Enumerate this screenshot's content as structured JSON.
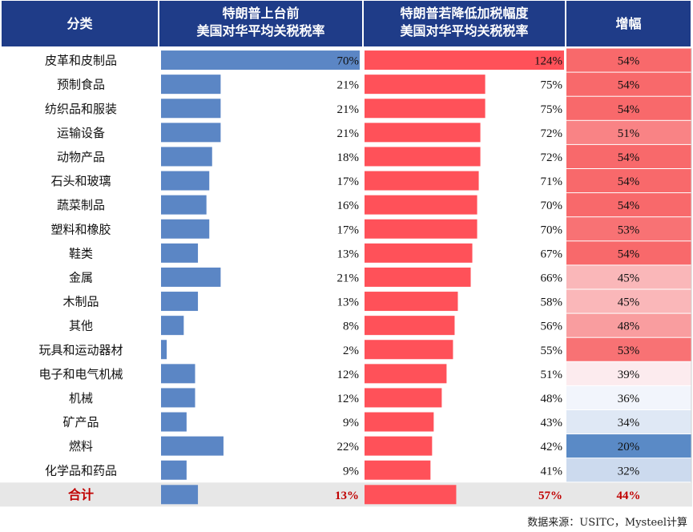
{
  "chart_data": {
    "type": "table",
    "headers": {
      "category": "分类",
      "before_line1": "特朗普上台前",
      "before_line2": "美国对华平均关税税率",
      "after_line1": "特朗普若降低加税幅度",
      "after_line2": "美国对华平均关税税率",
      "increase": "增幅"
    },
    "rows": [
      {
        "category": "皮革和皮制品",
        "before": 70,
        "after": 124,
        "increase": 54
      },
      {
        "category": "预制食品",
        "before": 21,
        "after": 75,
        "increase": 54
      },
      {
        "category": "纺织品和服装",
        "before": 21,
        "after": 75,
        "increase": 54
      },
      {
        "category": "运输设备",
        "before": 21,
        "after": 72,
        "increase": 51
      },
      {
        "category": "动物产品",
        "before": 18,
        "after": 72,
        "increase": 54
      },
      {
        "category": "石头和玻璃",
        "before": 17,
        "after": 71,
        "increase": 54
      },
      {
        "category": "蔬菜制品",
        "before": 16,
        "after": 70,
        "increase": 54
      },
      {
        "category": "塑料和橡胶",
        "before": 17,
        "after": 70,
        "increase": 53
      },
      {
        "category": "鞋类",
        "before": 13,
        "after": 67,
        "increase": 54
      },
      {
        "category": "金属",
        "before": 21,
        "after": 66,
        "increase": 45
      },
      {
        "category": "木制品",
        "before": 13,
        "after": 58,
        "increase": 45
      },
      {
        "category": "其他",
        "before": 8,
        "after": 56,
        "increase": 48
      },
      {
        "category": "玩具和运动器材",
        "before": 2,
        "after": 55,
        "increase": 53
      },
      {
        "category": "电子和电气机械",
        "before": 12,
        "after": 51,
        "increase": 39
      },
      {
        "category": "机械",
        "before": 12,
        "after": 48,
        "increase": 36
      },
      {
        "category": "矿产品",
        "before": 9,
        "after": 43,
        "increase": 34
      },
      {
        "category": "燃料",
        "before": 22,
        "after": 42,
        "increase": 20
      },
      {
        "category": "化学品和药品",
        "before": 9,
        "after": 41,
        "increase": 32
      }
    ],
    "total": {
      "category": "合计",
      "before": 13,
      "after": 57,
      "increase": 44
    },
    "unit": "%",
    "before_scale_max": 70,
    "after_scale_max": 124,
    "colors": {
      "header_bg": "#1f3c88",
      "before_bar": "#5b86c5",
      "after_bar": "#ff5159",
      "total_text": "#c00000",
      "total_row_bg": "#e7e7e7",
      "heat_high": "#f8696b",
      "heat_mid": "#fcfcff",
      "heat_low": "#5a8ac6"
    },
    "source": "数据来源：USITC，Mysteel计算"
  }
}
